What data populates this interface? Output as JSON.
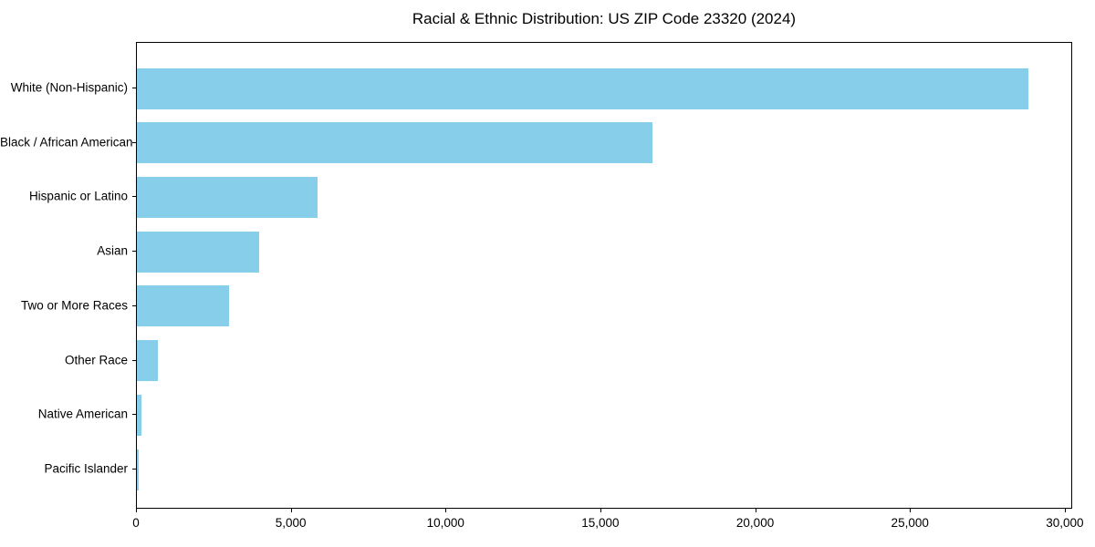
{
  "page": {
    "background_color": "#ffffff",
    "text_color": "#000000"
  },
  "chart_data": {
    "type": "bar",
    "orientation": "horizontal",
    "title": "Racial & Ethnic Distribution: US ZIP Code 23320 (2024)",
    "categories": [
      "White (Non-Hispanic)",
      "Black / African American",
      "Hispanic or Latino",
      "Asian",
      "Two or More Races",
      "Other Race",
      "Native American",
      "Pacific Islander"
    ],
    "values": [
      28800,
      16650,
      5840,
      3940,
      2970,
      670,
      160,
      60
    ],
    "xlabel": "",
    "ylabel": "",
    "xlim": [
      0,
      30240
    ],
    "x_ticks": [
      0,
      5000,
      10000,
      15000,
      20000,
      25000,
      30000
    ],
    "x_tick_labels": [
      "0",
      "5,000",
      "10,000",
      "15,000",
      "20,000",
      "25,000",
      "30,000"
    ],
    "bar_color": "#87CEEB",
    "spine_color": "#000000",
    "grid": false,
    "legend_position": "none"
  }
}
